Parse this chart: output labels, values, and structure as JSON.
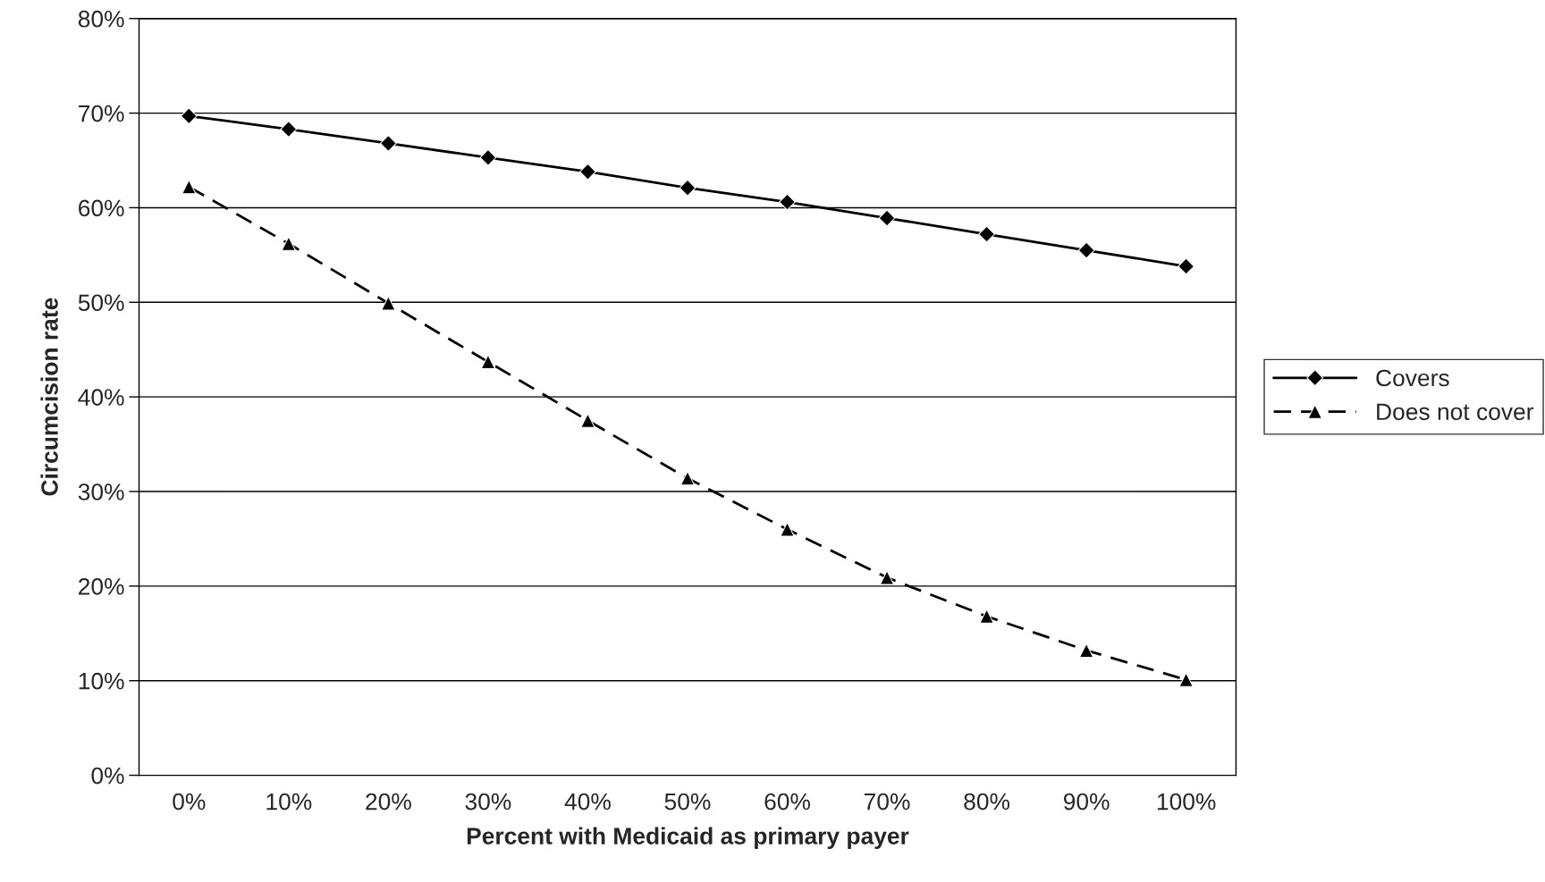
{
  "chart_data": {
    "type": "line",
    "xlabel": "Percent with Medicaid as primary payer",
    "ylabel": "Circumcision rate",
    "categories": [
      "0%",
      "10%",
      "20%",
      "30%",
      "40%",
      "50%",
      "60%",
      "70%",
      "80%",
      "90%",
      "100%"
    ],
    "series": [
      {
        "name": "Covers",
        "color": "#000000",
        "marker": "diamond",
        "line_style": "solid",
        "values": [
          69.7,
          68.3,
          66.8,
          65.3,
          63.8,
          62.1,
          60.6,
          58.9,
          57.2,
          55.5,
          53.8
        ]
      },
      {
        "name": "Does not cover",
        "color": "#000000",
        "marker": "triangle",
        "line_style": "dashed",
        "values": [
          62.2,
          56.2,
          49.9,
          43.7,
          37.5,
          31.4,
          26.0,
          20.9,
          16.8,
          13.2,
          10.1
        ]
      }
    ],
    "ylim": [
      0,
      80
    ],
    "yticks": [
      {
        "value": 0,
        "label": "0%"
      },
      {
        "value": 10,
        "label": "10%"
      },
      {
        "value": 20,
        "label": "20%"
      },
      {
        "value": 30,
        "label": "30%"
      },
      {
        "value": 40,
        "label": "40%"
      },
      {
        "value": 50,
        "label": "50%"
      },
      {
        "value": 60,
        "label": "60%"
      },
      {
        "value": 70,
        "label": "70%"
      },
      {
        "value": 80,
        "label": "80%"
      }
    ],
    "grid": "y",
    "legend": "right"
  }
}
